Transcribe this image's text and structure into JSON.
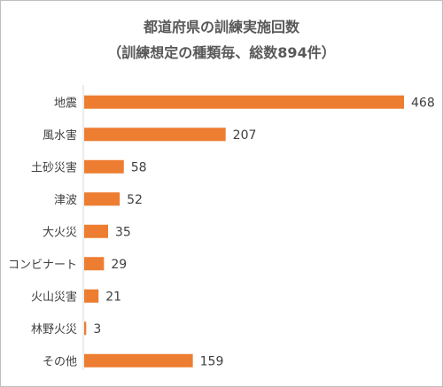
{
  "chart_data": {
    "type": "bar",
    "orientation": "horizontal",
    "title_line1": "都道府県の訓練実施回数",
    "title_line2": "（訓練想定の種類毎、総数894件）",
    "categories": [
      "地震",
      "風水害",
      "土砂災害",
      "津波",
      "大火災",
      "コンビナート",
      "火山災害",
      "林野火災",
      "その他"
    ],
    "values": [
      468,
      207,
      58,
      52,
      35,
      29,
      21,
      3,
      159
    ],
    "data_labels": [
      "468",
      "207",
      "58",
      "52",
      "35",
      "29",
      "21",
      "3",
      "159"
    ],
    "bar_color": "#ed7d31",
    "grid": false,
    "legend": "none"
  }
}
